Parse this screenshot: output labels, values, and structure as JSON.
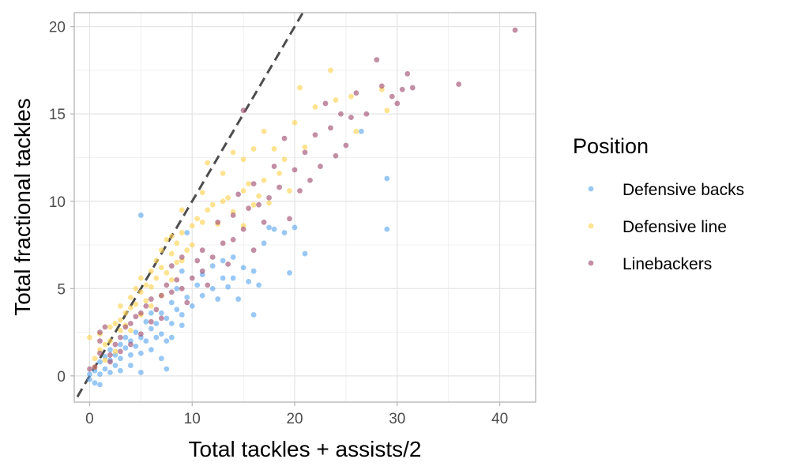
{
  "chart_data": {
    "type": "scatter",
    "title": "",
    "xlabel": "Total tackles + assists/2",
    "ylabel": "Total fractional tackles",
    "xlim": [
      -1.5,
      43.5
    ],
    "ylim": [
      -1.5,
      20.8
    ],
    "x_ticks": [
      0,
      10,
      20,
      30,
      40
    ],
    "y_ticks": [
      0,
      5,
      10,
      15,
      20
    ],
    "x_tick_labels": [
      "0",
      "10",
      "20",
      "30",
      "40"
    ],
    "y_tick_labels": [
      "0",
      "5",
      "10",
      "15",
      "20"
    ],
    "grid": true,
    "legend": {
      "title": "Position",
      "placement": "right"
    },
    "reference_line": {
      "style": "dashed",
      "slope": 1,
      "intercept": 0,
      "color": "#4d4d4d"
    },
    "series": [
      {
        "name": "Defensive backs",
        "color": "#5aa7ef",
        "points": [
          [
            0,
            -0.2
          ],
          [
            0,
            0.1
          ],
          [
            0.5,
            0.3
          ],
          [
            0.5,
            -0.4
          ],
          [
            1,
            0.1
          ],
          [
            1,
            0.8
          ],
          [
            1,
            -0.5
          ],
          [
            1.5,
            0.4
          ],
          [
            1.5,
            1.1
          ],
          [
            2,
            0.2
          ],
          [
            2,
            1.5
          ],
          [
            2,
            0.9
          ],
          [
            2.5,
            1.2
          ],
          [
            2.5,
            0.6
          ],
          [
            3,
            1.8
          ],
          [
            3,
            1.0
          ],
          [
            3,
            0.3
          ],
          [
            3.5,
            1.6
          ],
          [
            3.5,
            2.2
          ],
          [
            4,
            2.0
          ],
          [
            4,
            1.2
          ],
          [
            4,
            0.6
          ],
          [
            4.5,
            2.5
          ],
          [
            4.5,
            1.7
          ],
          [
            5,
            2.2
          ],
          [
            5,
            1.3
          ],
          [
            5,
            0.2
          ],
          [
            5,
            9.2
          ],
          [
            5.5,
            3.1
          ],
          [
            5.5,
            2.0
          ],
          [
            6,
            2.7
          ],
          [
            6,
            1.5
          ],
          [
            6,
            3.6
          ],
          [
            6.5,
            2.2
          ],
          [
            6.5,
            3.0
          ],
          [
            7,
            3.6
          ],
          [
            7,
            2.4
          ],
          [
            7,
            1.0
          ],
          [
            7.5,
            2.0
          ],
          [
            7.5,
            3.3
          ],
          [
            7.5,
            0.4
          ],
          [
            8,
            4.2
          ],
          [
            8,
            3.0
          ],
          [
            8,
            2.2
          ],
          [
            8.5,
            3.8
          ],
          [
            8.5,
            5.0
          ],
          [
            9,
            3.5
          ],
          [
            9,
            2.9
          ],
          [
            9,
            6.0
          ],
          [
            9.5,
            4.5
          ],
          [
            9.5,
            8.2
          ],
          [
            10,
            4.0
          ],
          [
            10.5,
            5.2
          ],
          [
            11,
            5.8
          ],
          [
            11,
            4.6
          ],
          [
            12,
            5.0
          ],
          [
            12,
            6.3
          ],
          [
            12.5,
            4.4
          ],
          [
            13,
            5.6
          ],
          [
            13,
            6.6
          ],
          [
            13.5,
            5.1
          ],
          [
            14,
            5.6
          ],
          [
            14,
            6.8
          ],
          [
            14.5,
            4.4
          ],
          [
            15,
            6.2
          ],
          [
            15.5,
            5.4
          ],
          [
            16,
            6.0
          ],
          [
            16,
            3.5
          ],
          [
            16.5,
            5.2
          ],
          [
            17,
            7.6
          ],
          [
            17.5,
            8.5
          ],
          [
            18,
            8.4
          ],
          [
            19,
            8.2
          ],
          [
            19.5,
            5.9
          ],
          [
            20,
            8.5
          ],
          [
            21,
            7.0
          ],
          [
            26.5,
            14.0
          ],
          [
            29,
            11.3
          ],
          [
            29,
            8.4
          ]
        ]
      },
      {
        "name": "Defensive line",
        "color": "#ffd24d",
        "points": [
          [
            0,
            2.2
          ],
          [
            0.5,
            1.0
          ],
          [
            0.5,
            0.5
          ],
          [
            1,
            1.5
          ],
          [
            1,
            2.4
          ],
          [
            1.5,
            1.8
          ],
          [
            1.5,
            0.9
          ],
          [
            2,
            2.8
          ],
          [
            2,
            2.0
          ],
          [
            2.5,
            3.0
          ],
          [
            2.5,
            1.4
          ],
          [
            3,
            4.0
          ],
          [
            3,
            3.2
          ],
          [
            3,
            2.6
          ],
          [
            3.5,
            3.6
          ],
          [
            3.5,
            2.9
          ],
          [
            4,
            4.5
          ],
          [
            4,
            3.9
          ],
          [
            4,
            2.6
          ],
          [
            4.5,
            5.0
          ],
          [
            4.5,
            4.1
          ],
          [
            5,
            5.6
          ],
          [
            5,
            4.8
          ],
          [
            5,
            3.5
          ],
          [
            5.5,
            5.2
          ],
          [
            5.5,
            4.3
          ],
          [
            6,
            6.0
          ],
          [
            6,
            5.1
          ],
          [
            6,
            4.0
          ],
          [
            6.5,
            6.6
          ],
          [
            6.5,
            5.6
          ],
          [
            7,
            7.2
          ],
          [
            7,
            6.2
          ],
          [
            7,
            4.6
          ],
          [
            7.5,
            7.8
          ],
          [
            7.5,
            5.9
          ],
          [
            8,
            8.0
          ],
          [
            8,
            7.0
          ],
          [
            8,
            5.5
          ],
          [
            8.5,
            6.5
          ],
          [
            8.5,
            7.6
          ],
          [
            9,
            9.5
          ],
          [
            9,
            8.2
          ],
          [
            9,
            6.6
          ],
          [
            9.5,
            7.2
          ],
          [
            10,
            8.6
          ],
          [
            10,
            7.5
          ],
          [
            10.5,
            9.0
          ],
          [
            11,
            10.5
          ],
          [
            11,
            8.8
          ],
          [
            11.5,
            12.2
          ],
          [
            11.5,
            9.5
          ],
          [
            12,
            9.8
          ],
          [
            12.5,
            8.7
          ],
          [
            13,
            10.0
          ],
          [
            13,
            11.6
          ],
          [
            13.5,
            10.2
          ],
          [
            14,
            9.4
          ],
          [
            14,
            12.8
          ],
          [
            15,
            10.6
          ],
          [
            15,
            12.4
          ],
          [
            15,
            8.6
          ],
          [
            15.5,
            11.0
          ],
          [
            16,
            9.8
          ],
          [
            16,
            13.0
          ],
          [
            16.5,
            10.3
          ],
          [
            17,
            11.2
          ],
          [
            17,
            14.0
          ],
          [
            17.5,
            9.9
          ],
          [
            18,
            13.0
          ],
          [
            18.5,
            11.6
          ],
          [
            19,
            12.4
          ],
          [
            19.5,
            10.6
          ],
          [
            20,
            14.5
          ],
          [
            20.5,
            16.5
          ],
          [
            21,
            13.1
          ],
          [
            22,
            15.4
          ],
          [
            23.5,
            17.5
          ],
          [
            24,
            15.8
          ],
          [
            25.5,
            16.0
          ],
          [
            26,
            14.0
          ],
          [
            28.5,
            16.4
          ],
          [
            29,
            15.2
          ]
        ]
      },
      {
        "name": "Linebackers",
        "color": "#9e4a6e",
        "points": [
          [
            0,
            0.4
          ],
          [
            0.5,
            0.5
          ],
          [
            1,
            1.3
          ],
          [
            1,
            2.0
          ],
          [
            1,
            2.5
          ],
          [
            1.5,
            2.8
          ],
          [
            2,
            1.2
          ],
          [
            2,
            0.8
          ],
          [
            2.5,
            1.8
          ],
          [
            3,
            2.2
          ],
          [
            3,
            1.4
          ],
          [
            3.5,
            2.8
          ],
          [
            4,
            3.0
          ],
          [
            4,
            1.8
          ],
          [
            4.5,
            3.4
          ],
          [
            5,
            3.6
          ],
          [
            5,
            2.4
          ],
          [
            5.5,
            4.0
          ],
          [
            6,
            3.1
          ],
          [
            6,
            4.4
          ],
          [
            6.5,
            3.8
          ],
          [
            7,
            4.6
          ],
          [
            7,
            3.3
          ],
          [
            7.5,
            5.2
          ],
          [
            8,
            4.8
          ],
          [
            8,
            6.3
          ],
          [
            8.5,
            5.5
          ],
          [
            9,
            5.0
          ],
          [
            9,
            6.8
          ],
          [
            9.5,
            4.2
          ],
          [
            10,
            5.6
          ],
          [
            10.5,
            6.6
          ],
          [
            11,
            6.0
          ],
          [
            11,
            7.2
          ],
          [
            11.5,
            5.2
          ],
          [
            12,
            6.8
          ],
          [
            12.5,
            8.8
          ],
          [
            13,
            7.6
          ],
          [
            13.5,
            6.4
          ],
          [
            14,
            9.2
          ],
          [
            14,
            7.8
          ],
          [
            14.5,
            10.4
          ],
          [
            15,
            8.4
          ],
          [
            15,
            15.2
          ],
          [
            15.5,
            9.6
          ],
          [
            16,
            11.0
          ],
          [
            16,
            7.2
          ],
          [
            16.5,
            9.8
          ],
          [
            17,
            8.8
          ],
          [
            17.5,
            10.2
          ],
          [
            18,
            12.0
          ],
          [
            18.5,
            10.8
          ],
          [
            19,
            13.6
          ],
          [
            19.5,
            9.0
          ],
          [
            20,
            11.8
          ],
          [
            20.5,
            10.6
          ],
          [
            21,
            12.8
          ],
          [
            21.5,
            11.2
          ],
          [
            22,
            13.8
          ],
          [
            22.5,
            12.0
          ],
          [
            23,
            15.6
          ],
          [
            23.5,
            14.2
          ],
          [
            24,
            12.6
          ],
          [
            24.5,
            15.0
          ],
          [
            25,
            13.2
          ],
          [
            25.5,
            14.8
          ],
          [
            26,
            16.2
          ],
          [
            27,
            15.0
          ],
          [
            28,
            18.1
          ],
          [
            28.5,
            16.6
          ],
          [
            29.5,
            16.0
          ],
          [
            30,
            15.6
          ],
          [
            30.5,
            16.4
          ],
          [
            31,
            17.3
          ],
          [
            31.5,
            16.5
          ],
          [
            36,
            16.7
          ],
          [
            41.5,
            19.8
          ]
        ]
      }
    ]
  }
}
